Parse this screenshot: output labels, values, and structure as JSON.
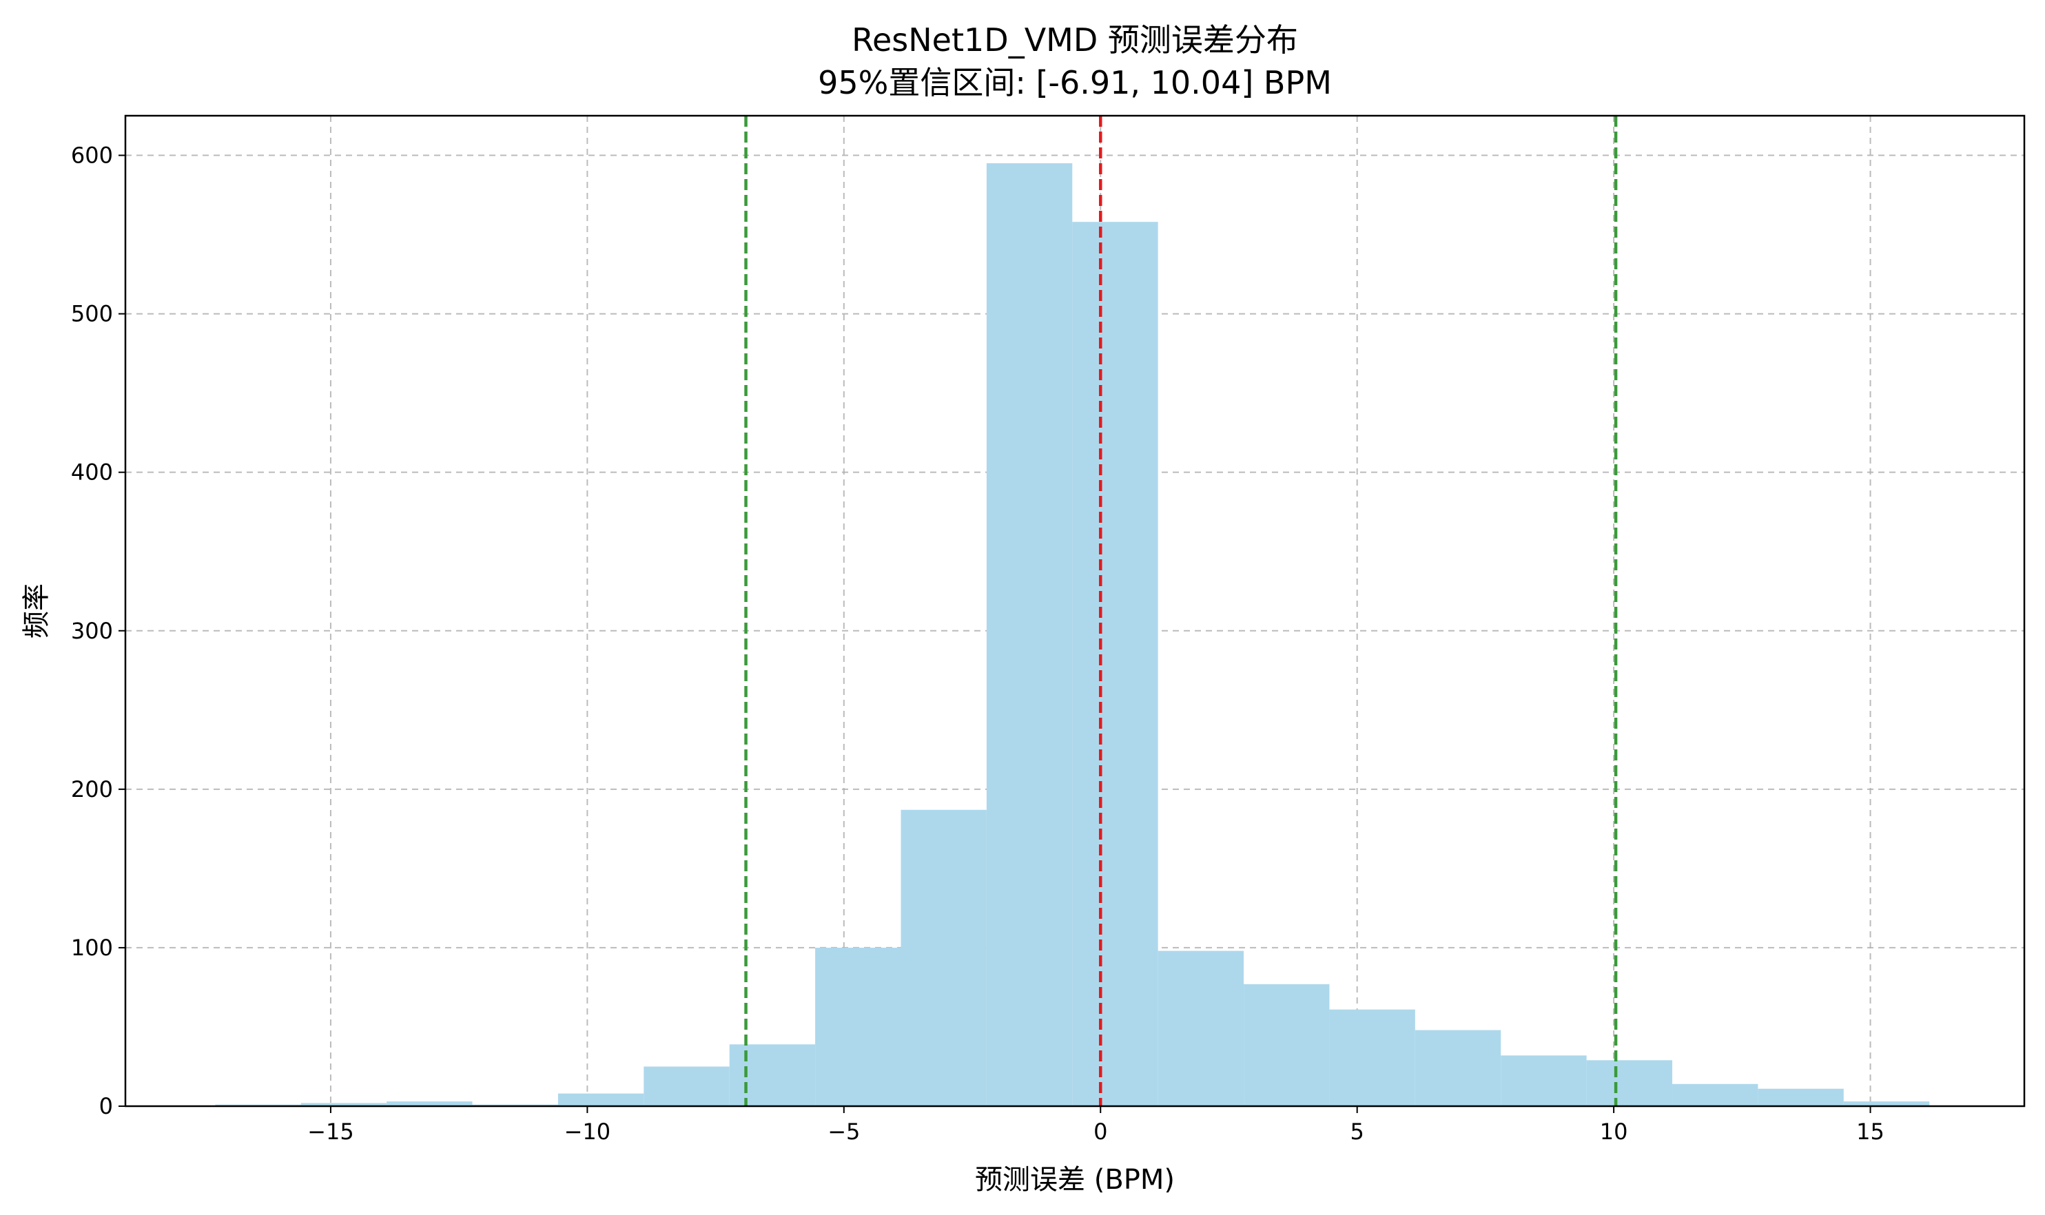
{
  "chart_data": {
    "type": "bar",
    "title": "ResNet1D_VMD 预测误差分布",
    "subtitle": "95%置信区间: [-6.91, 10.04] BPM",
    "xlabel": "预测误差 (BPM)",
    "ylabel": "频率",
    "xlim": [
      -19,
      18
    ],
    "ylim": [
      0,
      625
    ],
    "xticks": [
      -15,
      -10,
      -5,
      0,
      5,
      10,
      15
    ],
    "xtick_labels": [
      "−15",
      "−10",
      "−5",
      "0",
      "5",
      "10",
      "15"
    ],
    "yticks": [
      0,
      100,
      200,
      300,
      400,
      500,
      600
    ],
    "ytick_labels": [
      "0",
      "100",
      "200",
      "300",
      "400",
      "500",
      "600"
    ],
    "grid": true,
    "bin_edges": [
      -17.25,
      -15.58,
      -13.91,
      -12.24,
      -10.57,
      -8.9,
      -7.23,
      -5.56,
      -3.89,
      -2.22,
      -0.55,
      1.12,
      2.79,
      4.46,
      6.13,
      7.8,
      9.47,
      11.14,
      12.81,
      14.48,
      16.15
    ],
    "values": [
      1,
      2,
      3,
      1,
      8,
      25,
      39,
      100,
      187,
      595,
      558,
      98,
      77,
      61,
      48,
      32,
      29,
      14,
      11,
      3
    ],
    "bar_color": "#add8ec",
    "vertical_lines": [
      {
        "x": 0,
        "color": "#e41a1c"
      },
      {
        "x": -6.91,
        "color": "#3a9a3a"
      },
      {
        "x": 10.04,
        "color": "#3a9a3a"
      }
    ]
  }
}
